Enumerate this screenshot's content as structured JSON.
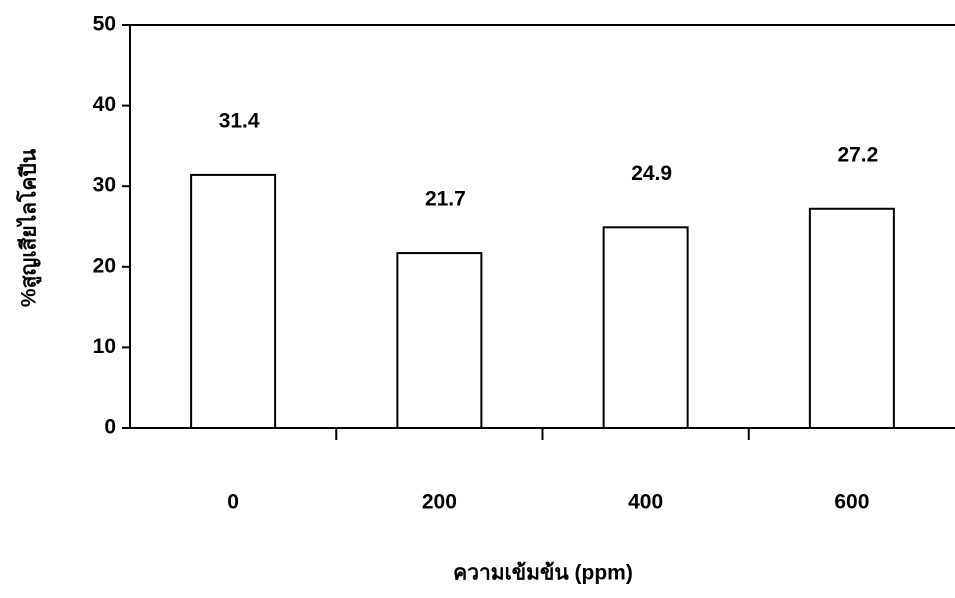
{
  "chart_data": {
    "type": "bar",
    "categories": [
      "0",
      "200",
      "400",
      "600"
    ],
    "values": [
      31.4,
      21.7,
      24.9,
      27.2
    ],
    "color": "#ffffff",
    "x_label": "ความเข้มข้น (ppm)",
    "y_label": "%สูญเสียไลโคปีน",
    "ylim": [
      0,
      50
    ],
    "yticks": [
      0,
      10,
      20,
      30,
      40,
      50
    ]
  }
}
